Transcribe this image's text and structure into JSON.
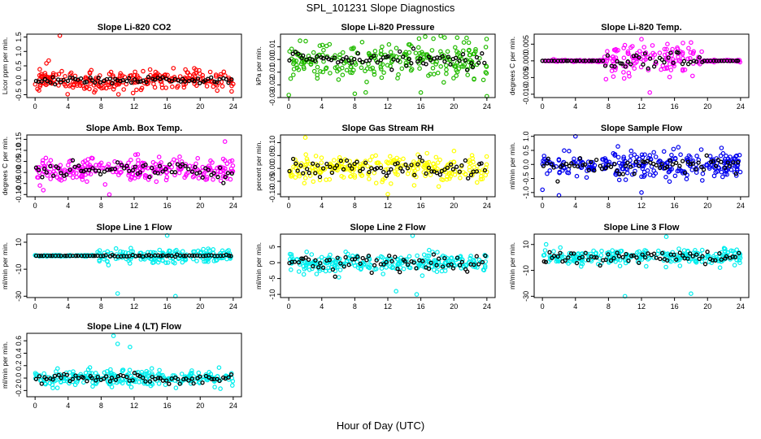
{
  "figure": {
    "title": "SPL_101231  Slope Diagnostics",
    "xlabel": "Hour of Day (UTC)"
  },
  "chart_data": [
    {
      "type": "scatter",
      "title": "Slope Li-820 CO2",
      "ylabel": "Licor ppm per min.",
      "color": "#ff0000",
      "xlim": [
        -1,
        25
      ],
      "xticks": [
        0,
        4,
        8,
        12,
        16,
        20,
        24
      ],
      "xtick_labels": [
        "0",
        "4",
        "8",
        "12",
        "16",
        "20",
        "24"
      ],
      "ylim": [
        -0.6,
        1.6
      ],
      "yticks": [
        -0.5,
        0.0,
        0.5,
        1.0,
        1.5
      ],
      "ytick_labels": [
        "-0.5",
        "0.0",
        "0.5",
        "1.0",
        "1.5"
      ],
      "spread": 0.35,
      "center": 0.0,
      "black_spread": 0.1,
      "seed": 11,
      "outliers": [
        [
          3.0,
          1.55
        ]
      ]
    },
    {
      "type": "scatter",
      "title": "Slope Li-820 Pressure",
      "ylabel": "kPa per min.",
      "color": "#22bb00",
      "xlim": [
        -1,
        25
      ],
      "xticks": [
        0,
        4,
        8,
        12,
        16,
        20,
        24
      ],
      "xtick_labels": [
        "0",
        "4",
        "8",
        "12",
        "16",
        "20",
        "24"
      ],
      "ylim": [
        -0.03,
        0.02
      ],
      "yticks": [
        -0.03,
        -0.02,
        -0.01,
        0.0,
        0.01
      ],
      "ytick_labels": [
        "-0.03",
        "-0.02",
        "-0.01",
        "0.00",
        "0.01"
      ],
      "spread": 0.013,
      "center": 0.0,
      "black_spread": 0.005,
      "seed": 23,
      "outliers": [
        [
          0,
          -0.028
        ],
        [
          24,
          -0.029
        ],
        [
          8,
          -0.027
        ],
        [
          16,
          -0.026
        ]
      ]
    },
    {
      "type": "scatter",
      "title": "Slope Li-820 Temp.",
      "ylabel": "degrees C per min.",
      "color": "#ff00ff",
      "xlim": [
        -1,
        25
      ],
      "xticks": [
        0,
        4,
        8,
        12,
        16,
        20,
        24
      ],
      "xtick_labels": [
        "0",
        "4",
        "8",
        "12",
        "16",
        "20",
        "24"
      ],
      "ylim": [
        -0.011,
        0.008
      ],
      "yticks": [
        -0.01,
        -0.005,
        0.0,
        0.005
      ],
      "ytick_labels": [
        "-0.010",
        "-0.005",
        "0.000",
        "0.005"
      ],
      "spread": 0.004,
      "center": 0.0,
      "black_spread": 0.002,
      "seed": 37,
      "flat": [
        [
          0,
          7.5
        ],
        [
          19.5,
          24
        ]
      ],
      "outliers": [
        [
          12,
          0.0065
        ],
        [
          13,
          -0.0095
        ],
        [
          18,
          0.0055
        ]
      ]
    },
    {
      "type": "scatter",
      "title": "Slope Amb. Box Temp.",
      "ylabel": "degrees C per min.",
      "color": "#ff00ff",
      "xlim": [
        -1,
        25
      ],
      "xticks": [
        0,
        4,
        8,
        12,
        16,
        20,
        24
      ],
      "xtick_labels": [
        "0",
        "4",
        "8",
        "12",
        "16",
        "20",
        "24"
      ],
      "ylim": [
        -0.11,
        0.17
      ],
      "yticks": [
        -0.1,
        -0.05,
        0.0,
        0.05,
        0.1,
        0.15
      ],
      "ytick_labels": [
        "-0.10",
        "-0.05",
        "0.00",
        "0.05",
        "0.10",
        "0.15"
      ],
      "spread": 0.05,
      "center": 0.01,
      "black_spread": 0.03,
      "seed": 41,
      "outliers": [
        [
          1,
          -0.08
        ],
        [
          9,
          -0.1
        ],
        [
          23,
          0.14
        ]
      ]
    },
    {
      "type": "scatter",
      "title": "Slope Gas Stream RH",
      "ylabel": "percent per min.",
      "color": "#ffff00",
      "xlim": [
        -1,
        25
      ],
      "xticks": [
        0,
        4,
        8,
        12,
        16,
        20,
        24
      ],
      "xtick_labels": [
        "0",
        "4",
        "8",
        "12",
        "16",
        "20",
        "24"
      ],
      "ylim": [
        -0.11,
        0.13
      ],
      "yticks": [
        -0.1,
        -0.05,
        0.0,
        0.05,
        0.1
      ],
      "ytick_labels": [
        "-0.10",
        "-0.05",
        "0.00",
        "0.05",
        "0.10"
      ],
      "spread": 0.045,
      "center": 0.0,
      "black_spread": 0.03,
      "seed": 53,
      "outliers": [
        [
          2,
          0.12
        ],
        [
          12,
          -0.1
        ]
      ]
    },
    {
      "type": "scatter",
      "title": "Slope Sample Flow",
      "ylabel": "ml/min per min.",
      "color": "#0000ee",
      "xlim": [
        -1,
        25
      ],
      "xticks": [
        0,
        4,
        8,
        12,
        16,
        20,
        24
      ],
      "xtick_labels": [
        "0",
        "4",
        "8",
        "12",
        "16",
        "20",
        "24"
      ],
      "ylim": [
        -1.15,
        1.05
      ],
      "yticks": [
        -1.0,
        -0.5,
        0.0,
        0.5,
        1.0
      ],
      "ytick_labels": [
        "-1.0",
        "-0.5",
        "0.0",
        "0.5",
        "1.0"
      ],
      "spread": 0.45,
      "center": 0.0,
      "black_spread": 0.25,
      "seed": 61,
      "outliers": [
        [
          2,
          -1.1
        ],
        [
          4,
          1.0
        ],
        [
          12,
          -1.0
        ],
        [
          0,
          -0.9
        ]
      ]
    },
    {
      "type": "scatter",
      "title": "Slope Line 1 Flow",
      "ylabel": "ml/min per min.",
      "color": "#00eeee",
      "xlim": [
        -1,
        25
      ],
      "xticks": [
        0,
        4,
        8,
        12,
        16,
        20,
        24
      ],
      "xtick_labels": [
        "0",
        "4",
        "8",
        "12",
        "16",
        "20",
        "24"
      ],
      "ylim": [
        -31,
        16
      ],
      "yticks": [
        -30,
        -10,
        10
      ],
      "ytick_labels": [
        "-30",
        "-10",
        "10"
      ],
      "spread": 5,
      "center": 0,
      "black_spread": 0.5,
      "seed": 71,
      "flat": [
        [
          0,
          7.5
        ]
      ],
      "outliers": [
        [
          10,
          -28
        ],
        [
          17,
          -30
        ],
        [
          16,
          15
        ]
      ]
    },
    {
      "type": "scatter",
      "title": "Slope Line 2 Flow",
      "ylabel": "ml/min per min.",
      "color": "#00eeee",
      "xlim": [
        -1,
        25
      ],
      "xticks": [
        0,
        4,
        8,
        12,
        16,
        20,
        24
      ],
      "xtick_labels": [
        "0",
        "4",
        "8",
        "12",
        "16",
        "20",
        "24"
      ],
      "ylim": [
        -11,
        9
      ],
      "yticks": [
        -10,
        -5,
        0,
        5
      ],
      "ytick_labels": [
        "-10",
        "-5",
        "0",
        "5"
      ],
      "spread": 2.5,
      "center": 0,
      "black_spread": 2.5,
      "seed": 83,
      "outliers": [
        [
          15,
          8.5
        ],
        [
          13,
          -9
        ],
        [
          15.5,
          -10
        ]
      ]
    },
    {
      "type": "scatter",
      "title": "Slope Line 3 Flow",
      "ylabel": "ml/min per min.",
      "color": "#00eeee",
      "xlim": [
        -1,
        25
      ],
      "xticks": [
        0,
        4,
        8,
        12,
        16,
        20,
        24
      ],
      "xtick_labels": [
        "0",
        "4",
        "8",
        "12",
        "16",
        "20",
        "24"
      ],
      "ylim": [
        -31,
        18
      ],
      "yticks": [
        -30,
        -10,
        10
      ],
      "ytick_labels": [
        "-30",
        "-10",
        "10"
      ],
      "spread": 6,
      "center": 0,
      "black_spread": 4,
      "seed": 97,
      "outliers": [
        [
          10,
          -30
        ],
        [
          18,
          -28
        ],
        [
          15,
          16
        ]
      ]
    },
    {
      "type": "scatter",
      "title": "Slope Line 4 (LT) Flow",
      "ylabel": "ml/min per min.",
      "color": "#00eeee",
      "xlim": [
        -1,
        25
      ],
      "xticks": [
        0,
        4,
        8,
        12,
        16,
        20,
        24
      ],
      "xtick_labels": [
        "0",
        "4",
        "8",
        "12",
        "16",
        "20",
        "24"
      ],
      "ylim": [
        -0.3,
        0.72
      ],
      "yticks": [
        -0.2,
        0.0,
        0.2,
        0.4,
        0.6
      ],
      "ytick_labels": [
        "-0.2",
        "0.0",
        "0.2",
        "0.4",
        "0.6"
      ],
      "spread": 0.12,
      "center": 0.0,
      "black_spread": 0.06,
      "seed": 101,
      "outliers": [
        [
          9.5,
          0.68
        ],
        [
          10,
          0.55
        ],
        [
          11.5,
          0.5
        ]
      ]
    }
  ]
}
